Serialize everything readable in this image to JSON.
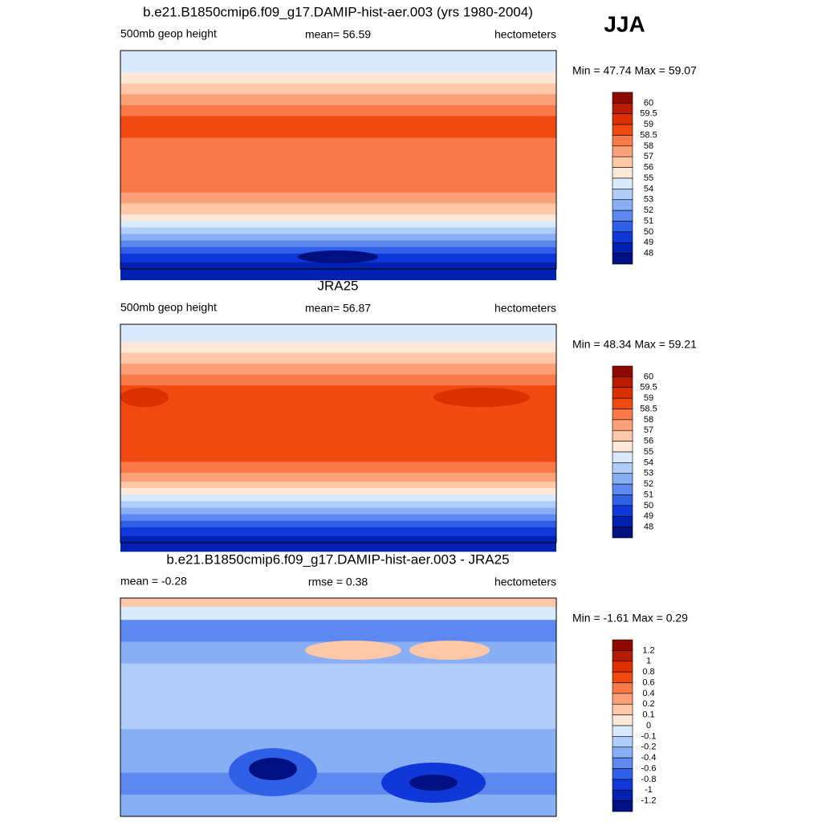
{
  "season": "JJA",
  "palette": [
    "#8c0a00",
    "#b81c00",
    "#dc3000",
    "#f04a10",
    "#f87a48",
    "#fba078",
    "#fdc8a8",
    "#fde8d8",
    "#d8eafc",
    "#b0ccf8",
    "#88aef4",
    "#5c88f0",
    "#3060e8",
    "#1038d8",
    "#0020b0",
    "#001080"
  ],
  "panels": [
    {
      "title": "b.e21.B1850cmip6.f09_g17.DAMIP-hist-aer.003 (yrs 1980-2004)",
      "left": "500mb geop height",
      "center": "mean=  56.59",
      "right": "hectometers",
      "min_max": "Min =  47.74 Max =  59.07",
      "levels": [
        "60",
        "59.5",
        "59",
        "58.5",
        "58",
        "57",
        "56",
        "55",
        "54",
        "53",
        "52",
        "51",
        "50",
        "49",
        "48"
      ]
    },
    {
      "title": "JRA25",
      "left": "500mb geop height",
      "center": "mean=  56.87",
      "right": "hectometers",
      "min_max": "Min =  48.34 Max =  59.21",
      "levels": [
        "60",
        "59.5",
        "59",
        "58.5",
        "58",
        "57",
        "56",
        "55",
        "54",
        "53",
        "52",
        "51",
        "50",
        "49",
        "48"
      ]
    },
    {
      "title": "b.e21.B1850cmip6.f09_g17.DAMIP-hist-aer.003 - JRA25",
      "left": "mean =  -0.28",
      "center": "rmse =   0.38",
      "right": "hectometers",
      "min_max": "Min =  -1.61 Max =   0.29",
      "levels": [
        "1.2",
        "1",
        "0.8",
        "0.6",
        "0.4",
        "0.2",
        "0.1",
        "0",
        "-0.1",
        "-0.2",
        "-0.4",
        "-0.6",
        "-0.8",
        "-1",
        "-1.2"
      ]
    }
  ]
}
